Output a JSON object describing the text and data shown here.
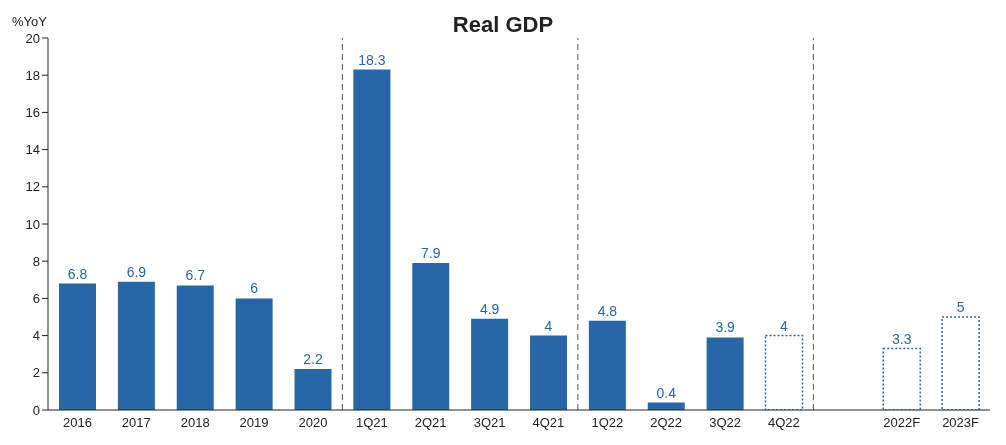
{
  "chart_data": {
    "type": "bar",
    "title": "Real GDP",
    "ylabel": "%YoY",
    "categories": [
      "2016",
      "2017",
      "2018",
      "2019",
      "2020",
      "1Q21",
      "2Q21",
      "3Q21",
      "4Q21",
      "1Q22",
      "2Q22",
      "3Q22",
      "4Q22",
      null,
      "2022F",
      "2023F"
    ],
    "series": [
      {
        "color": "#2767a8",
        "values": [
          6.8,
          6.9,
          6.7,
          6,
          2.2,
          18.3,
          7.9,
          4.9,
          4,
          4.8,
          0.4,
          3.9,
          null,
          null,
          null,
          null
        ]
      },
      {
        "color": "#2767a8",
        "line_style": "dotted",
        "values": [
          null,
          null,
          null,
          null,
          null,
          null,
          null,
          null,
          null,
          null,
          null,
          null,
          4,
          null,
          3.3,
          5
        ]
      }
    ],
    "stacked": true,
    "data_labels": true,
    "ylim": [
      0,
      20
    ],
    "yticks": [
      0,
      2,
      4,
      6,
      8,
      10,
      12,
      14,
      16,
      18,
      20
    ],
    "grid": false,
    "legend": false
  }
}
